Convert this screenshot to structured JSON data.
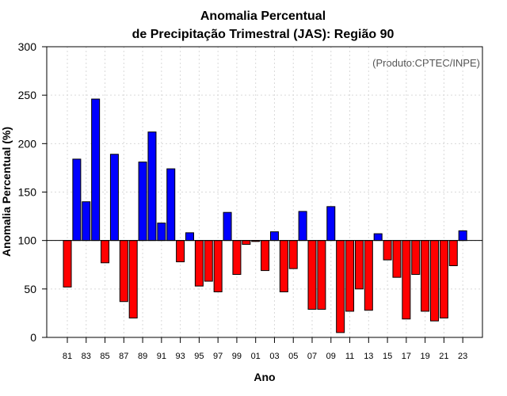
{
  "chart_data": {
    "type": "bar",
    "title_line1": "Anomalia Percentual",
    "title_line2": "de Precipitação Trimestral (JAS): Região 90",
    "xlabel": "Ano",
    "ylabel": "Anomalia Percentual (%)",
    "source_note": "(Produto:CPTEC/INPE)",
    "ylim": [
      0,
      300
    ],
    "yticks": [
      "0",
      "50",
      "100",
      "150",
      "200",
      "250",
      "300"
    ],
    "baseline": 100,
    "colors": {
      "above": "#0000ff",
      "below": "#ff0000"
    },
    "categories": [
      "81",
      "82",
      "83",
      "84",
      "85",
      "86",
      "87",
      "88",
      "89",
      "90",
      "91",
      "92",
      "93",
      "94",
      "95",
      "96",
      "97",
      "98",
      "99",
      "00",
      "01",
      "02",
      "03",
      "04",
      "05",
      "06",
      "07",
      "08",
      "09",
      "10",
      "11",
      "12",
      "13",
      "14",
      "15",
      "16",
      "17",
      "18",
      "19",
      "20",
      "21",
      "22",
      "23"
    ],
    "xtick_labels": [
      "81",
      "83",
      "85",
      "87",
      "89",
      "91",
      "93",
      "95",
      "97",
      "99",
      "01",
      "03",
      "05",
      "07",
      "09",
      "11",
      "13",
      "15",
      "17",
      "19",
      "21",
      "23"
    ],
    "values": [
      52,
      184,
      140,
      246,
      77,
      189,
      37,
      20,
      181,
      212,
      118,
      174,
      78,
      108,
      53,
      58,
      47,
      129,
      65,
      96,
      99,
      69,
      109,
      47,
      71,
      130,
      29,
      29,
      135,
      5,
      27,
      50,
      28,
      107,
      80,
      62,
      19,
      65,
      27,
      17,
      20,
      74,
      110
    ]
  }
}
